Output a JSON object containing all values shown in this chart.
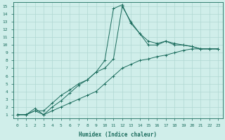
{
  "xlabel": "Humidex (Indice chaleur)",
  "xlim": [
    -0.5,
    23.5
  ],
  "ylim": [
    0.5,
    15.5
  ],
  "xticks": [
    0,
    1,
    2,
    3,
    4,
    5,
    6,
    7,
    8,
    9,
    10,
    11,
    12,
    13,
    14,
    15,
    16,
    17,
    18,
    19,
    20,
    21,
    22,
    23
  ],
  "yticks": [
    1,
    2,
    3,
    4,
    5,
    6,
    7,
    8,
    9,
    10,
    11,
    12,
    13,
    14,
    15
  ],
  "bg_color": "#d0eeea",
  "grid_color": "#b0d8d2",
  "line_color": "#1a6b5c",
  "line1_x": [
    0,
    1,
    2,
    3,
    4,
    5,
    6,
    7,
    8,
    9,
    10,
    11,
    12,
    13,
    14,
    15,
    16,
    17,
    18,
    19,
    20,
    21,
    22,
    23
  ],
  "line1_y": [
    1,
    1,
    1.5,
    1,
    1.5,
    2,
    2.5,
    3,
    3.5,
    4,
    5,
    6,
    7,
    7.5,
    8,
    8.2,
    8.5,
    8.7,
    9,
    9.3,
    9.5,
    9.5,
    9.5,
    9.5
  ],
  "line2_x": [
    0,
    1,
    2,
    3,
    4,
    5,
    6,
    7,
    8,
    9,
    10,
    11,
    12,
    13,
    14,
    15,
    16,
    17,
    18,
    19,
    20,
    21,
    22,
    23
  ],
  "line2_y": [
    1,
    1,
    1.8,
    1,
    2,
    2.8,
    3.8,
    4.8,
    5.5,
    6.5,
    8,
    14.7,
    15.2,
    12.8,
    11.5,
    10.5,
    10.2,
    10.5,
    10.2,
    10,
    9.8,
    9.5,
    9.5,
    9.5
  ],
  "line3_x": [
    0,
    1,
    2,
    3,
    4,
    5,
    6,
    7,
    8,
    9,
    10,
    11,
    12,
    13,
    14,
    15,
    16,
    17,
    18,
    19,
    20,
    21,
    22,
    23
  ],
  "line3_y": [
    1,
    1,
    1.5,
    1.5,
    2.5,
    3.5,
    4.2,
    5,
    5.5,
    6.5,
    7,
    8.2,
    15,
    13,
    11.5,
    10,
    10,
    10.5,
    10,
    10,
    9.8,
    9.5,
    9.5,
    9.5
  ]
}
